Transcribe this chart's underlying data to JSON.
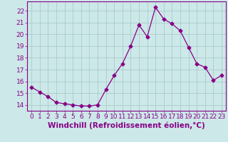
{
  "x": [
    0,
    1,
    2,
    3,
    4,
    5,
    6,
    7,
    8,
    9,
    10,
    11,
    12,
    13,
    14,
    15,
    16,
    17,
    18,
    19,
    20,
    21,
    22,
    23
  ],
  "y": [
    15.5,
    15.1,
    14.7,
    14.2,
    14.1,
    14.0,
    13.9,
    13.9,
    14.0,
    15.3,
    16.5,
    17.5,
    19.0,
    20.8,
    19.8,
    22.3,
    21.3,
    20.9,
    20.3,
    18.9,
    17.5,
    17.2,
    16.1,
    16.5
  ],
  "line_color": "#880088",
  "marker": "D",
  "marker_size": 2.5,
  "bg_color": "#cce8e8",
  "grid_color": "#aacccc",
  "xlabel": "Windchill (Refroidissement éolien,°C)",
  "ylim": [
    13.5,
    22.8
  ],
  "xlim": [
    -0.5,
    23.5
  ],
  "yticks": [
    14,
    15,
    16,
    17,
    18,
    19,
    20,
    21,
    22
  ],
  "xticks": [
    0,
    1,
    2,
    3,
    4,
    5,
    6,
    7,
    8,
    9,
    10,
    11,
    12,
    13,
    14,
    15,
    16,
    17,
    18,
    19,
    20,
    21,
    22,
    23
  ],
  "tick_color": "#880088",
  "label_color": "#880088",
  "font_size": 6.5,
  "xlabel_font_size": 7.5
}
